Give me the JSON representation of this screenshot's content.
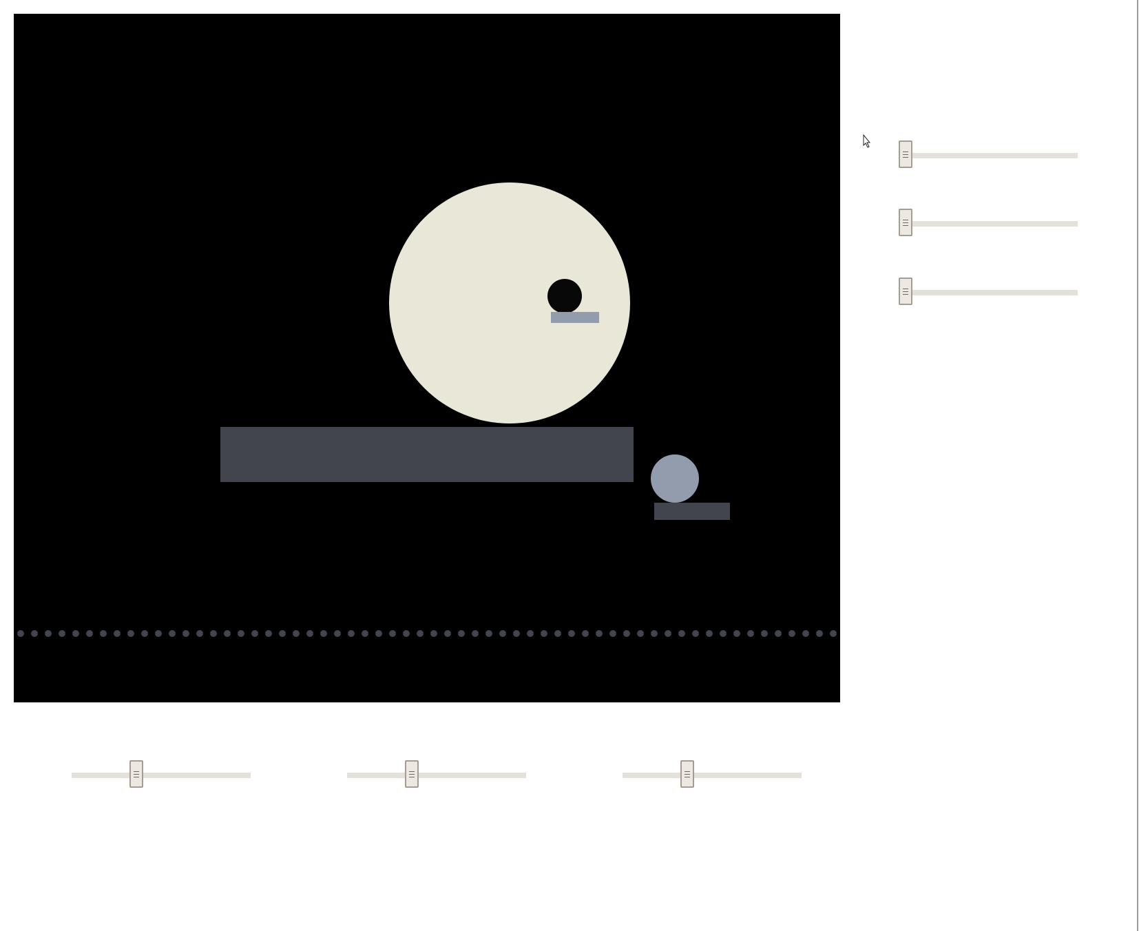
{
  "colors": {
    "background": "#ffffff",
    "stage": "#000000",
    "big_circle": "#e8e7d8",
    "eye": "#080808",
    "eye_bar": "#929cad",
    "platform": "#42454d",
    "small_circle": "#929cad",
    "small_base": "#42454d",
    "dots": "#42454d",
    "slider_track": "#e4e0da",
    "slider_thumb": "#ede9e2"
  },
  "dots_count": 60,
  "sliders": {
    "right": [
      {
        "value": 0.0
      },
      {
        "value": 0.0
      },
      {
        "value": 0.0
      }
    ],
    "bottom": [
      {
        "value": 0.35
      },
      {
        "value": 0.35
      },
      {
        "value": 0.35
      }
    ]
  },
  "icons": {
    "cursor": "text-cursor-icon",
    "thumb_grip": "grip-lines-icon"
  }
}
